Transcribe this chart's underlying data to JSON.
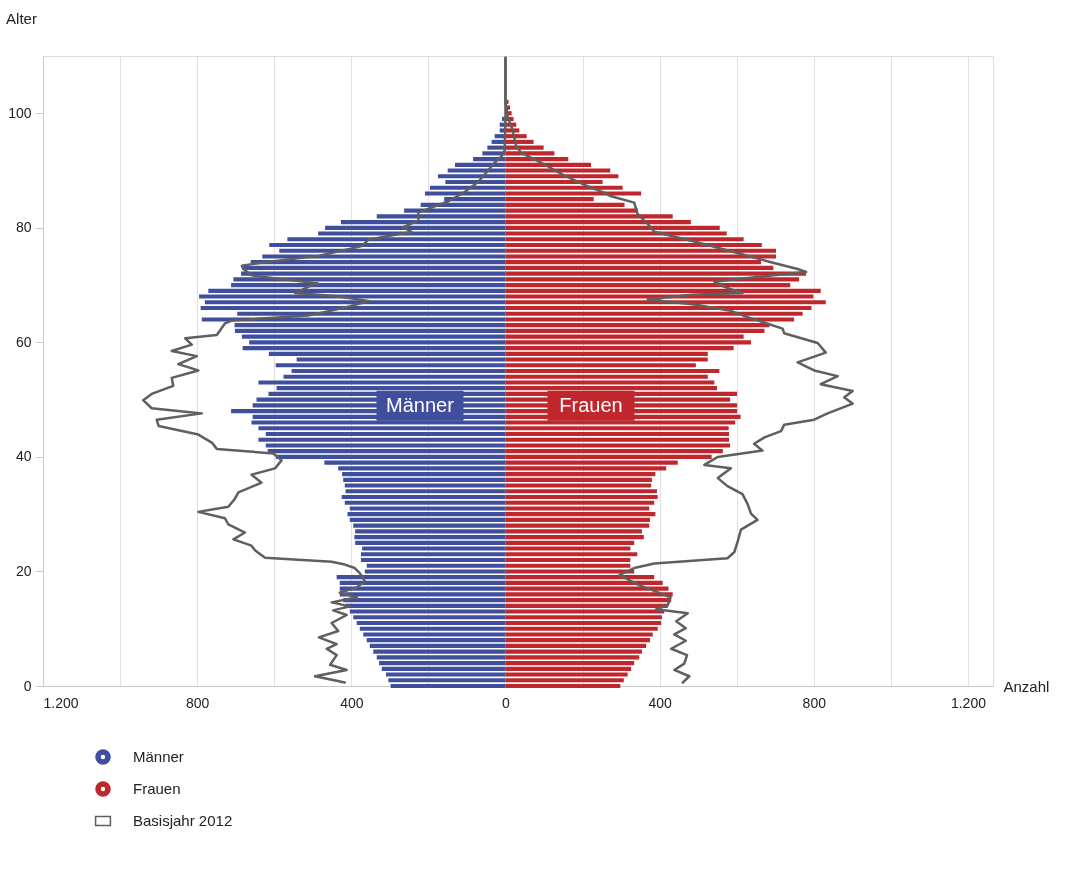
{
  "chart_data": {
    "type": "bar",
    "orientation": "horizontal",
    "stacked": true,
    "xlabel": "Anzahl",
    "ylabel": "Alter",
    "x": [
      0,
      1,
      2,
      3,
      4,
      5,
      6,
      7,
      8,
      9,
      10,
      11,
      12,
      13,
      14,
      15,
      16,
      17,
      18,
      19,
      20,
      21,
      22,
      23,
      24,
      25,
      26,
      27,
      28,
      29,
      30,
      31,
      32,
      33,
      34,
      35,
      36,
      37,
      38,
      39,
      40,
      41,
      42,
      43,
      44,
      45,
      46,
      47,
      48,
      49,
      50,
      51,
      52,
      53,
      54,
      55,
      56,
      57,
      58,
      59,
      60,
      61,
      62,
      63,
      64,
      65,
      66,
      67,
      68,
      69,
      70,
      71,
      72,
      73,
      74,
      75,
      76,
      77,
      78,
      79,
      80,
      81,
      82,
      83,
      84,
      85,
      86,
      87,
      88,
      89,
      90,
      91,
      92,
      93,
      94,
      95,
      96,
      97,
      98,
      99,
      100,
      101,
      102,
      103
    ],
    "series": [
      {
        "name": "Männer",
        "color": "#3f4f9e",
        "values": [
          -298,
          -304,
          -310,
          -321,
          -328,
          -334,
          -343,
          -352,
          -360,
          -369,
          -378,
          -386,
          -395,
          -404,
          -415,
          -421,
          -430,
          -430,
          -430,
          -438,
          -365,
          -360,
          -375,
          -375,
          -372,
          -390,
          -392,
          -390,
          -395,
          -404,
          -410,
          -404,
          -417,
          -425,
          -415,
          -417,
          -421,
          -424,
          -434,
          -470,
          -596,
          -617,
          -622,
          -641,
          -622,
          -641,
          -659,
          -656,
          -712,
          -656,
          -646,
          -615,
          -594,
          -641,
          -576,
          -555,
          -596,
          -542,
          -614,
          -682,
          -665,
          -684,
          -702,
          -703,
          -788,
          -696,
          -791,
          -780,
          -795,
          -771,
          -712,
          -706,
          -686,
          -683,
          -661,
          -631,
          -587,
          -613,
          -566,
          -486,
          -468,
          -427,
          -334,
          -263,
          -220,
          -159,
          -209,
          -196,
          -156,
          -175,
          -150,
          -131,
          -84,
          -60,
          -47,
          -36,
          -28,
          -15,
          -15,
          -9,
          null,
          null,
          null,
          -2
        ]
      },
      {
        "name": "Frauen",
        "color": "#c0272d",
        "values": [
          298,
          307,
          317,
          326,
          334,
          347,
          354,
          365,
          375,
          382,
          395,
          404,
          406,
          412,
          421,
          430,
          434,
          423,
          408,
          386,
          334,
          324,
          324,
          342,
          324,
          334,
          359,
          354,
          373,
          375,
          389,
          373,
          386,
          395,
          393,
          378,
          380,
          389,
          417,
          447,
          535,
          564,
          583,
          580,
          580,
          579,
          596,
          610,
          601,
          601,
          583,
          601,
          549,
          542,
          525,
          555,
          494,
          525,
          525,
          592,
          637,
          618,
          672,
          685,
          749,
          771,
          794,
          831,
          799,
          818,
          739,
          762,
          780,
          695,
          663,
          702,
          702,
          665,
          618,
          574,
          556,
          481,
          434,
          343,
          309,
          229,
          352,
          304,
          252,
          293,
          272,
          222,
          163,
          127,
          99,
          73,
          55,
          36,
          28,
          21,
          16,
          12,
          8,
          null
        ]
      },
      {
        "name": "Basisjahr 2012",
        "type": "line",
        "color": "#5f5f5f",
        "x": [
          0.6,
          1.7,
          2.8,
          3.7,
          5.4,
          6.5,
          7.3,
          8.5,
          9.6,
          11,
          12.4,
          13.2,
          13.9,
          14.6,
          15.5,
          16.3,
          17.2,
          18.3,
          19.7,
          20.6,
          21.2,
          21.7,
          22.4,
          23.7,
          24.5,
          25.6,
          26.8,
          28.2,
          29.3,
          30.4,
          31.3,
          32.7,
          33.8,
          35.5,
          36.9,
          38,
          39.4,
          40.6,
          41.4,
          42.5,
          43.9,
          45.4,
          46.5,
          47.6,
          48.5,
          49.9,
          51,
          52.4,
          53.8,
          55.1,
          56.2,
          57.6,
          58.5,
          59.6,
          60.7,
          61.3,
          63.3,
          63.8,
          64.7,
          65.8,
          67.2,
          68.1,
          68.6,
          69.7,
          70.3,
          71.1,
          71.7,
          72.8,
          73.4,
          74,
          75.1,
          76.8,
          77.9,
          79.3,
          80.1,
          81.3,
          82.7,
          84.6,
          86.3,
          88,
          89.7,
          91.4,
          92.5,
          93.6,
          99.3,
          109.7
        ],
        "values": [
          -417,
          -494,
          -412,
          -455,
          -438,
          -464,
          -438,
          -484,
          -434,
          -451,
          -412,
          -447,
          -404,
          -451,
          -386,
          -430,
          -386,
          -365,
          -378,
          -391,
          -417,
          -451,
          -624,
          -650,
          -659,
          -706,
          -676,
          -719,
          -728,
          -797,
          -719,
          -702,
          -693,
          -633,
          -659,
          -598,
          -581,
          -602,
          -749,
          -762,
          -797,
          -900,
          -905,
          -788,
          -918,
          -940,
          -918,
          -862,
          -866,
          -797,
          -849,
          -801,
          -866,
          -814,
          -831,
          -749,
          -728,
          -710,
          -512,
          -434,
          -352,
          -443,
          -546,
          -512,
          -486,
          -589,
          -659,
          -680,
          -684,
          -624,
          -486,
          -373,
          -356,
          -244,
          -265,
          -226,
          -226,
          -149,
          -105,
          -71,
          -49,
          -28,
          -10,
          -2,
          0,
          0
        ]
      },
      {
        "type": "line",
        "color": "#5f5f5f",
        "x": [
          0.6,
          1.7,
          2.8,
          3.9,
          5.4,
          6.5,
          7.9,
          9,
          10.1,
          11.3,
          12.7,
          13.4,
          14.1,
          15.5,
          16.6,
          17.7,
          19.4,
          20.6,
          21.4,
          22.3,
          23.4,
          25.1,
          27.3,
          29,
          30.1,
          31.8,
          33.5,
          34.9,
          36.3,
          38,
          38.6,
          40,
          41.1,
          42.3,
          43.4,
          44.5,
          45.6,
          46.5,
          47.6,
          49.3,
          50.4,
          51.5,
          52.7,
          54.1,
          55.1,
          56.5,
          58.2,
          59.9,
          61.6,
          62.4,
          64.4,
          65.5,
          66.6,
          67.5,
          68.3,
          68.6,
          69.7,
          70.6,
          71.1,
          72.3,
          72.8,
          74,
          75.6,
          77.6,
          79.3,
          80.7,
          82.4,
          84.4,
          85.5,
          86.1,
          87.5,
          89.1,
          91.4,
          93.1,
          94.2,
          97,
          99.3,
          102,
          109.7
        ],
        "values": [
          460,
          477,
          438,
          464,
          471,
          430,
          468,
          438,
          468,
          443,
          473,
          391,
          421,
          428,
          386,
          343,
          296,
          334,
          386,
          576,
          594,
          602,
          611,
          654,
          637,
          628,
          615,
          576,
          551,
          585,
          516,
          551,
          667,
          645,
          672,
          715,
          723,
          801,
          836,
          901,
          879,
          901,
          818,
          862,
          801,
          758,
          831,
          810,
          723,
          719,
          628,
          585,
          490,
          369,
          481,
          615,
          568,
          542,
          611,
          780,
          758,
          689,
          602,
          490,
          386,
          369,
          343,
          334,
          274,
          257,
          205,
          153,
          92,
          41,
          28,
          19,
          6,
          0,
          0
        ]
      }
    ],
    "xlim": [
      -1200,
      1265
    ],
    "xticks": [
      {
        "value": -1200,
        "label": "1.200"
      },
      {
        "value": -1000,
        "label": null
      },
      {
        "value": -800,
        "label": "800"
      },
      {
        "value": -600,
        "label": null
      },
      {
        "value": -400,
        "label": "400"
      },
      {
        "value": -200,
        "label": null
      },
      0,
      {
        "value": 200,
        "label": null
      },
      {
        "value": 400,
        "label": "400"
      },
      {
        "value": 600,
        "label": null
      },
      {
        "value": 800,
        "label": "800"
      },
      {
        "value": 1000,
        "label": null
      },
      {
        "value": 1200,
        "label": "1.200"
      }
    ],
    "ylim": [
      0,
      110
    ],
    "yticks": [
      0,
      20,
      40,
      60,
      80,
      100
    ],
    "annotations": [
      "Männer",
      "Frauen"
    ],
    "grid": "x",
    "legend": "bottom left"
  }
}
